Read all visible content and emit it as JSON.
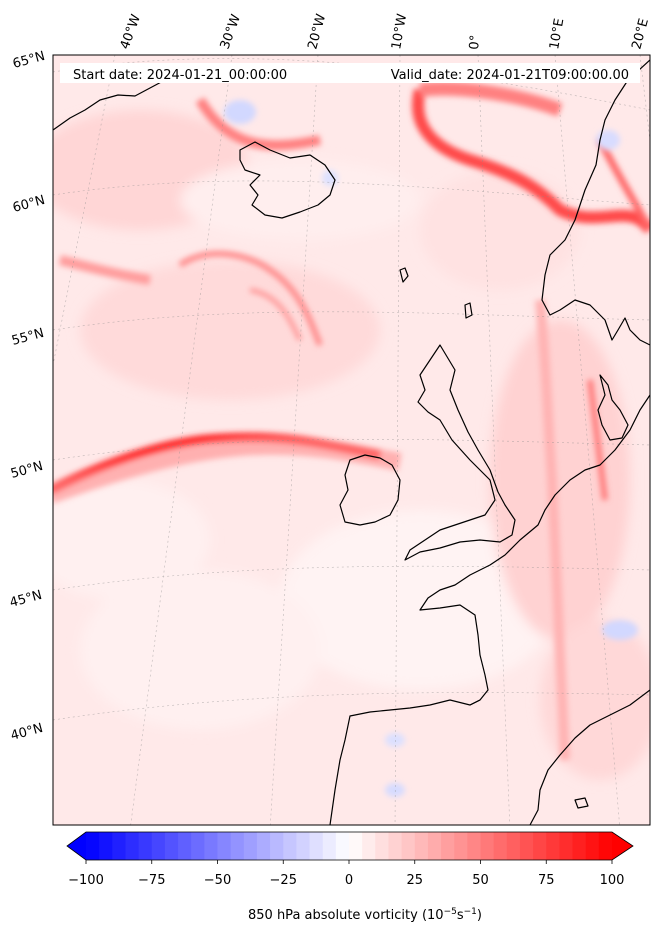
{
  "header": {
    "start_label": "Start date: 2024-01-21_00:00:00",
    "valid_label": "Valid_date: 2024-01-21T09:00:00.00"
  },
  "map": {
    "lon_labels": [
      "40°W",
      "30°W",
      "20°W",
      "10°W",
      "0°",
      "10°E",
      "20°E"
    ],
    "lat_labels": [
      "65°N",
      "60°N",
      "55°N",
      "50°N",
      "45°N",
      "40°N"
    ],
    "field": "850 hPa absolute vorticity"
  },
  "colorbar": {
    "label": "850 hPa absolute vorticity (10",
    "label_exp1": "−5",
    "label_mid": "s",
    "label_exp2": "−1",
    "label_end": ")",
    "ticks": [
      "−100",
      "−75",
      "−50",
      "−25",
      "0",
      "25",
      "50",
      "75",
      "100"
    ],
    "vmin": -100,
    "vmax": 100,
    "levels": 41,
    "colors": {
      "neg": "#0000ff",
      "zero": "#ffffff",
      "pos": "#ff0000"
    }
  }
}
